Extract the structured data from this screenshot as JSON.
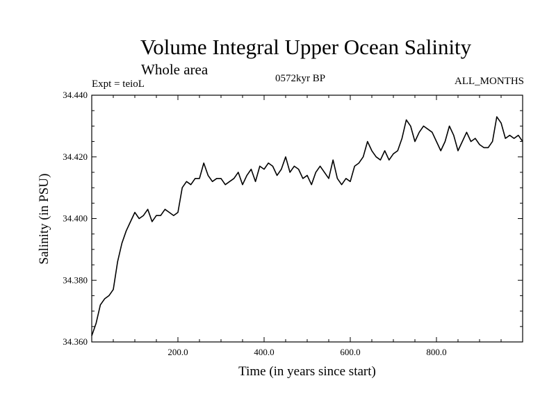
{
  "chart_data": {
    "type": "line",
    "title": "Volume Integral Upper Ocean Salinity",
    "subtitle": "Whole area",
    "experiment_label": "Expt = teioL",
    "period_label": "0572kyr BP",
    "months_label": "ALL_MONTHS",
    "xlabel": "Time (in years since start)",
    "ylabel": "Salinity (in PSU)",
    "xlim": [
      0,
      1000
    ],
    "ylim": [
      34.36,
      34.44
    ],
    "xticks": [
      {
        "value": 200,
        "label": "200.0"
      },
      {
        "value": 400,
        "label": "400.0"
      },
      {
        "value": 600,
        "label": "600.0"
      },
      {
        "value": 800,
        "label": "800.0"
      }
    ],
    "yticks": [
      {
        "value": 34.36,
        "label": "34.360"
      },
      {
        "value": 34.38,
        "label": "34.380"
      },
      {
        "value": 34.4,
        "label": "34.400"
      },
      {
        "value": 34.42,
        "label": "34.420"
      },
      {
        "value": 34.44,
        "label": "34.440"
      }
    ],
    "series": [
      {
        "name": "Salinity",
        "color": "#000000",
        "x": [
          0,
          10,
          20,
          30,
          40,
          50,
          60,
          70,
          80,
          90,
          100,
          110,
          120,
          130,
          140,
          150,
          160,
          170,
          180,
          190,
          200,
          210,
          220,
          230,
          240,
          250,
          260,
          270,
          280,
          290,
          300,
          310,
          320,
          330,
          340,
          350,
          360,
          370,
          380,
          390,
          400,
          410,
          420,
          430,
          440,
          450,
          460,
          470,
          480,
          490,
          500,
          510,
          520,
          530,
          540,
          550,
          560,
          570,
          580,
          590,
          600,
          610,
          620,
          630,
          640,
          650,
          660,
          670,
          680,
          690,
          700,
          710,
          720,
          730,
          740,
          750,
          760,
          770,
          780,
          790,
          800,
          810,
          820,
          830,
          840,
          850,
          860,
          870,
          880,
          890,
          900,
          910,
          920,
          930,
          940,
          950,
          960,
          970,
          980,
          990,
          1000
        ],
        "y": [
          34.362,
          34.366,
          34.372,
          34.374,
          34.375,
          34.377,
          34.386,
          34.392,
          34.396,
          34.399,
          34.402,
          34.4,
          34.401,
          34.403,
          34.399,
          34.401,
          34.401,
          34.403,
          34.402,
          34.401,
          34.402,
          34.41,
          34.412,
          34.411,
          34.413,
          34.413,
          34.418,
          34.414,
          34.412,
          34.413,
          34.413,
          34.411,
          34.412,
          34.413,
          34.415,
          34.411,
          34.414,
          34.416,
          34.412,
          34.417,
          34.416,
          34.418,
          34.417,
          34.414,
          34.416,
          34.42,
          34.415,
          34.417,
          34.416,
          34.413,
          34.414,
          34.411,
          34.415,
          34.417,
          34.415,
          34.413,
          34.419,
          34.413,
          34.411,
          34.413,
          34.412,
          34.417,
          34.418,
          34.42,
          34.425,
          34.422,
          34.42,
          34.419,
          34.422,
          34.419,
          34.421,
          34.422,
          34.426,
          34.432,
          34.43,
          34.425,
          34.428,
          34.43,
          34.429,
          34.428,
          34.425,
          34.422,
          34.425,
          34.43,
          34.427,
          34.422,
          34.425,
          34.428,
          34.425,
          34.426,
          34.424,
          34.423,
          34.423,
          34.425,
          34.433,
          34.431,
          34.426,
          34.427,
          34.426,
          34.427,
          34.425
        ]
      }
    ]
  }
}
